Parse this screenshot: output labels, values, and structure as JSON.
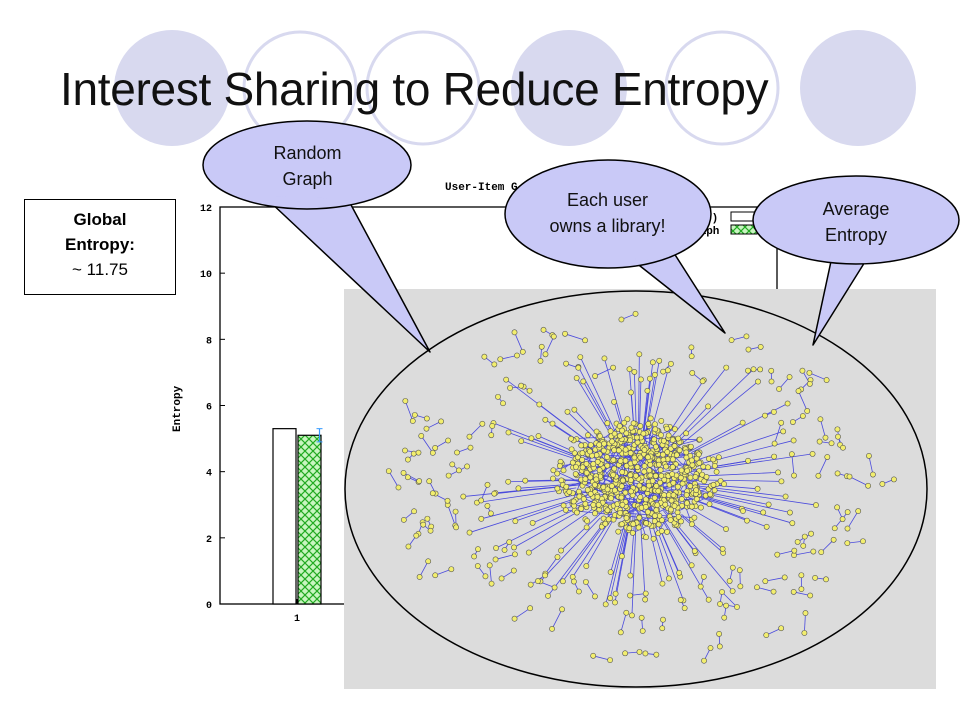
{
  "slide": {
    "title": "Interest Sharing to Reduce Entropy",
    "colors": {
      "circle_fill": "#d8d9ef",
      "callout_fill": "#c9c9f7",
      "panel_bg": "#dcdcdc",
      "node": "#f2ee6e",
      "edge": "#4a4adc"
    }
  },
  "global_box": {
    "line1": "Global",
    "line2": "Entropy:",
    "line3": "~ 11.75"
  },
  "callouts": {
    "random_graph": "Random Graph",
    "each_user": "Each user owns a library!",
    "average": "Average Entropy"
  },
  "chart_data": {
    "type": "bar",
    "title": "User-Item G",
    "ylabel": "Entropy",
    "ylim": [
      0,
      12
    ],
    "yticks": [
      0,
      2,
      4,
      6,
      8,
      10,
      12
    ],
    "categories": [
      "1"
    ],
    "series": [
      {
        "values": [
          5.3
        ],
        "pattern": "white"
      },
      {
        "values": [
          5.1
        ],
        "pattern": "green-crosshatch",
        "error": 0.2
      }
    ],
    "legend_fragments": [
      "s)",
      "raph"
    ]
  }
}
